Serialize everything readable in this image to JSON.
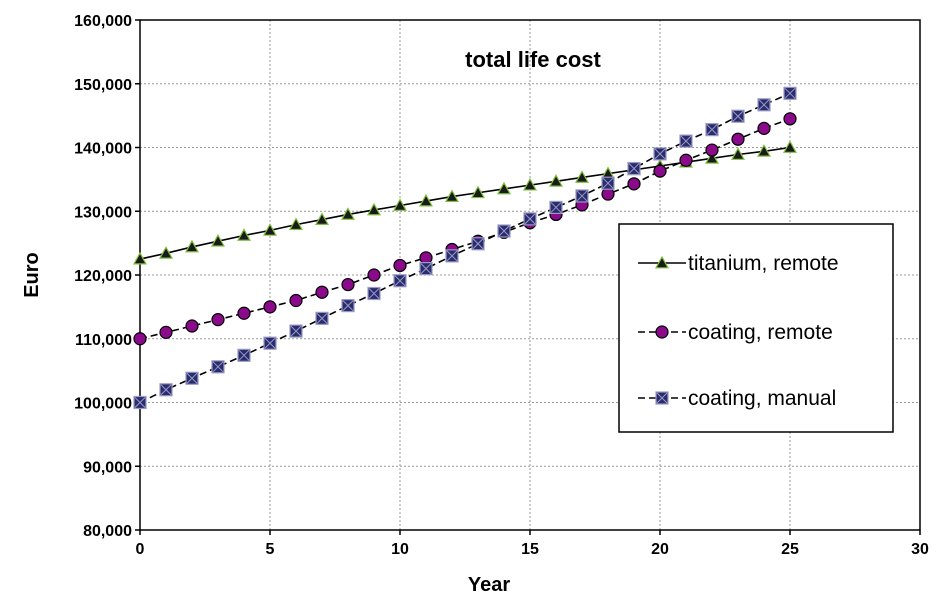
{
  "chart_data": {
    "type": "line",
    "title": "total life cost",
    "xlabel": "Year",
    "ylabel": "Euro",
    "xlim": [
      0,
      30
    ],
    "ylim": [
      80000,
      160000
    ],
    "xticks": [
      0,
      5,
      10,
      15,
      20,
      25,
      30
    ],
    "xtick_labels": [
      "0",
      "5",
      "10",
      "15",
      "20",
      "25",
      "30"
    ],
    "yticks": [
      80000,
      90000,
      100000,
      110000,
      120000,
      130000,
      140000,
      150000,
      160000
    ],
    "ytick_labels": [
      "80,000",
      "90,000",
      "100,000",
      "110,000",
      "120,000",
      "130,000",
      "140,000",
      "150,000",
      "160,000"
    ],
    "grid": true,
    "legend_position": "right",
    "x": [
      0,
      1,
      2,
      3,
      4,
      5,
      6,
      7,
      8,
      9,
      10,
      11,
      12,
      13,
      14,
      15,
      16,
      17,
      18,
      19,
      20,
      21,
      22,
      23,
      24,
      25
    ],
    "series": [
      {
        "name": "titanium, remote",
        "marker": "triangle",
        "line_style": "solid",
        "marker_color": "#1a1a1a",
        "marker_stroke": "#7fbf3f",
        "values": [
          122500,
          123400,
          124400,
          125300,
          126200,
          127000,
          127900,
          128700,
          129500,
          130200,
          130900,
          131600,
          132300,
          132900,
          133500,
          134100,
          134700,
          135300,
          135900,
          136500,
          137100,
          137700,
          138300,
          138900,
          139400,
          140000
        ]
      },
      {
        "name": "coating, remote",
        "marker": "circle",
        "line_style": "dashed",
        "marker_color": "#8b0a8b",
        "marker_stroke": "#000000",
        "values": [
          110000,
          111000,
          112000,
          113000,
          114000,
          115000,
          116000,
          117300,
          118500,
          120000,
          121500,
          122700,
          124000,
          125300,
          126700,
          128200,
          129500,
          131000,
          132700,
          134300,
          136300,
          138000,
          139600,
          141300,
          143000,
          144500
        ]
      },
      {
        "name": "coating, manual",
        "marker": "square",
        "line_style": "dashed",
        "marker_color": "#2a2d6b",
        "marker_stroke": "#9a9ac8",
        "values": [
          100000,
          102000,
          103800,
          105600,
          107400,
          109300,
          111200,
          113200,
          115200,
          117100,
          119100,
          121000,
          123000,
          124900,
          126900,
          128800,
          130600,
          132400,
          134400,
          136700,
          139000,
          141000,
          142800,
          144900,
          146700,
          148500
        ]
      }
    ]
  }
}
